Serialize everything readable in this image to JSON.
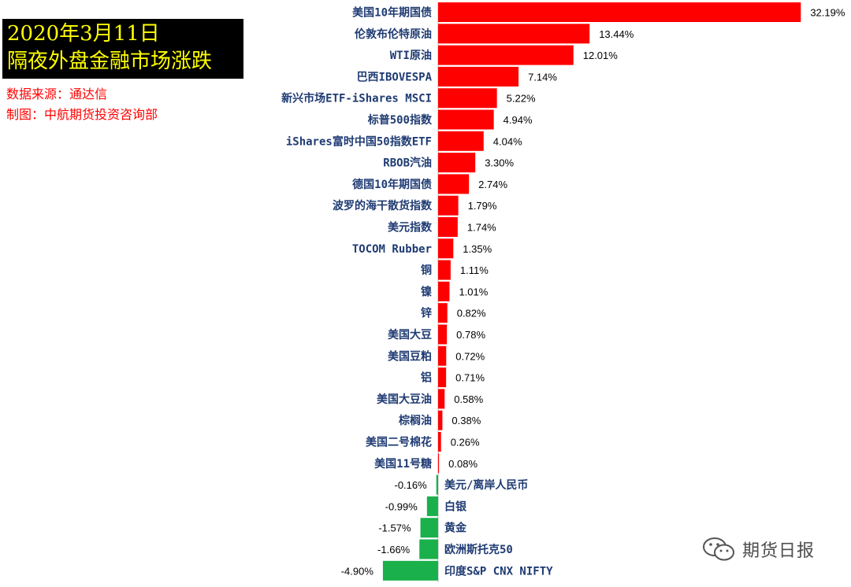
{
  "header": {
    "title_line1": "2020年3月11日",
    "title_line2": "隔夜外盘金融市场涨跌",
    "source": "数据来源：通达信",
    "author": "制图：中航期货投资咨询部"
  },
  "watermark": {
    "text": "期货日报",
    "icon": "wechat-icon"
  },
  "colors": {
    "positive": "#ff0000",
    "negative": "#1ab04b",
    "label": "#1f3b73"
  },
  "chart_data": {
    "type": "bar",
    "orientation": "horizontal",
    "title": "",
    "xlabel": "",
    "ylabel": "",
    "grid": false,
    "legend": "none",
    "value_suffix": "%",
    "categories": [
      "美国10年期国债",
      "伦敦布伦特原油",
      "WTI原油",
      "巴西IBOVESPA",
      "新兴市场ETF-iShares MSCI",
      "标普500指数",
      "iShares富时中国50指数ETF",
      "RBOB汽油",
      "德国10年期国债",
      "波罗的海干散货指数",
      "美元指数",
      "TOCOM Rubber",
      "铜",
      "镍",
      "锌",
      "美国大豆",
      "美国豆粕",
      "铝",
      "美国大豆油",
      "棕榈油",
      "美国二号棉花",
      "美国11号糖",
      "美元/离岸人民币",
      "白银",
      "黄金",
      "欧洲斯托克50",
      "印度S&P CNX NIFTY"
    ],
    "values": [
      32.19,
      13.44,
      12.01,
      7.14,
      5.22,
      4.94,
      4.04,
      3.3,
      2.74,
      1.79,
      1.74,
      1.35,
      1.11,
      1.01,
      0.82,
      0.78,
      0.72,
      0.71,
      0.58,
      0.38,
      0.26,
      0.08,
      -0.16,
      -0.99,
      -1.57,
      -1.66,
      -4.9
    ],
    "value_labels": [
      "32.19%",
      "13.44%",
      "12.01%",
      "7.14%",
      "5.22%",
      "4.94%",
      "4.04%",
      "3.30%",
      "2.74%",
      "1.79%",
      "1.74%",
      "1.35%",
      "1.11%",
      "1.01%",
      "0.82%",
      "0.78%",
      "0.72%",
      "0.71%",
      "0.58%",
      "0.38%",
      "0.26%",
      "0.08%",
      "-0.16%",
      "-0.99%",
      "-1.57%",
      "-1.66%",
      "-4.90%"
    ]
  }
}
